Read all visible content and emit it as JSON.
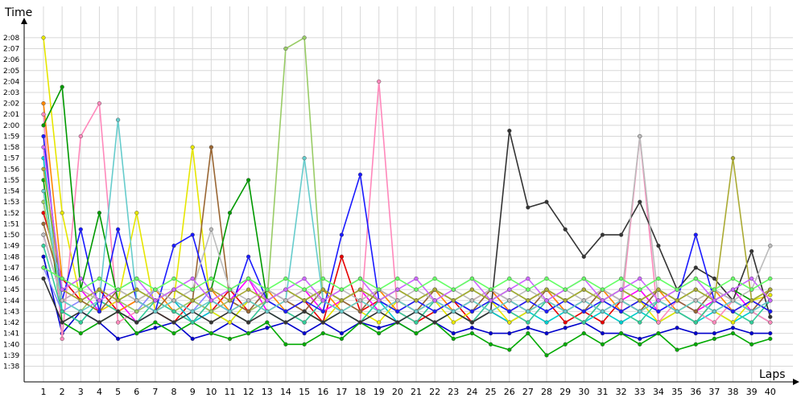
{
  "chart_data": {
    "type": "line",
    "ylabel": "Time",
    "xlabel": "Laps",
    "grid": true,
    "legend": "none",
    "x": [
      1,
      2,
      3,
      4,
      5,
      6,
      7,
      8,
      9,
      10,
      11,
      12,
      13,
      14,
      15,
      16,
      17,
      18,
      19,
      20,
      21,
      22,
      23,
      24,
      25,
      26,
      27,
      28,
      29,
      30,
      31,
      32,
      33,
      34,
      35,
      36,
      37,
      38,
      39,
      40
    ],
    "xticks": [
      "1",
      "2",
      "3",
      "4",
      "5",
      "6",
      "7",
      "8",
      "9",
      "10",
      "11",
      "12",
      "13",
      "14",
      "15",
      "16",
      "17",
      "18",
      "19",
      "20",
      "21",
      "22",
      "23",
      "24",
      "25",
      "26",
      "27",
      "28",
      "29",
      "30",
      "31",
      "32",
      "33",
      "34",
      "35",
      "36",
      "37",
      "38",
      "39",
      "40"
    ],
    "yticks": [
      "1:38",
      "1:39",
      "1:40",
      "1:41",
      "1:42",
      "1:43",
      "1:44",
      "1:45",
      "1:46",
      "1:47",
      "1:48",
      "1:49",
      "1:50",
      "1:51",
      "1:52",
      "1:53",
      "1:54",
      "1:55",
      "1:56",
      "1:57",
      "1:58",
      "1:59",
      "2:00",
      "2:01",
      "2:02",
      "2:03",
      "2:04",
      "2:05",
      "2:06",
      "2:07",
      "2:08"
    ],
    "ylim_seconds": [
      97,
      129.5
    ],
    "series": [
      {
        "color": "#0000cc",
        "values": [
          108,
          101,
          103,
          102,
          100.5,
          101,
          101.5,
          102,
          100.5,
          101,
          102,
          101,
          101.5,
          102,
          101,
          102,
          101,
          102,
          101.5,
          102,
          101,
          102,
          101,
          101.5,
          101,
          101,
          101.5,
          101,
          101.5,
          102,
          101,
          101,
          100.5,
          101,
          101.5,
          101,
          101,
          101.5,
          101,
          101
        ]
      },
      {
        "color": "#e60000",
        "values": [
          112,
          106,
          104,
          105,
          103,
          104,
          103,
          102,
          104,
          103,
          105,
          103,
          104,
          103,
          104,
          102,
          108,
          103,
          104,
          103,
          102,
          103,
          104,
          102,
          103,
          102,
          103,
          104,
          102,
          103,
          102,
          104,
          103,
          104,
          103,
          102,
          104,
          103,
          104,
          103
        ]
      },
      {
        "color": "#00aa00",
        "values": [
          115,
          102,
          101,
          102,
          103,
          101,
          102,
          101,
          102,
          101,
          100.5,
          101,
          102,
          100,
          100,
          101,
          100.5,
          102,
          101,
          102,
          101,
          102,
          100.5,
          101,
          100,
          99.5,
          101,
          99,
          100,
          101,
          100,
          101,
          100,
          101,
          99.5,
          100,
          100.5,
          101,
          100,
          100.5
        ]
      },
      {
        "color": "#ff00ff",
        "values": [
          110,
          104,
          105,
          103,
          104,
          102,
          103,
          104,
          102,
          103,
          104,
          106,
          103,
          104,
          105,
          103,
          104,
          105,
          103,
          104,
          103,
          104,
          103,
          104,
          105,
          103,
          104,
          105,
          103,
          104,
          103,
          104,
          105,
          103,
          104,
          103,
          104,
          105,
          103,
          104
        ]
      },
      {
        "color": "#00cccc",
        "values": [
          117,
          103,
          102,
          104,
          103,
          102,
          103,
          104,
          102,
          103,
          102,
          104,
          103,
          102,
          103,
          102,
          103,
          102,
          104,
          102,
          103,
          102,
          103,
          102,
          103,
          102,
          103,
          102,
          103,
          102,
          103,
          102,
          103,
          102,
          103,
          102,
          103,
          102,
          103,
          102
        ]
      },
      {
        "color": "#e6e600",
        "values": [
          128,
          112,
          104,
          103,
          104,
          112,
          103,
          104,
          118,
          103,
          102,
          104,
          103,
          104,
          103,
          102,
          104,
          103,
          102,
          104,
          103,
          104,
          102,
          103,
          104,
          102,
          103,
          104,
          103,
          102,
          104,
          103,
          104,
          102,
          103,
          104,
          103,
          102,
          104,
          104.5
        ]
      },
      {
        "color": "#ff8800",
        "values": [
          122,
          106,
          105,
          104,
          103,
          104,
          105,
          103,
          104,
          105,
          103,
          104,
          105,
          103,
          104,
          105,
          103,
          104,
          105,
          103,
          104,
          105,
          103,
          104,
          105,
          103,
          104,
          105,
          103,
          104,
          105,
          103,
          104,
          105,
          103,
          104,
          105,
          103,
          104,
          103
        ]
      },
      {
        "color": "#ff88bb",
        "values": [
          121,
          100.5,
          119,
          122,
          102,
          103,
          104,
          103,
          102,
          104,
          103,
          102,
          104,
          103,
          102,
          104,
          103,
          102,
          124,
          103,
          102,
          104,
          103,
          102,
          104,
          103,
          102,
          104,
          103,
          102,
          104,
          103,
          119,
          102,
          104,
          103,
          102,
          104,
          103,
          102
        ]
      },
      {
        "color": "#8888ff",
        "values": [
          107,
          103,
          104,
          105,
          104,
          103,
          105,
          104,
          103,
          105,
          104,
          103,
          105,
          104,
          103,
          105,
          104,
          103,
          105,
          104,
          103,
          105,
          104,
          103,
          105,
          104,
          103,
          105,
          104,
          103,
          105,
          104,
          103,
          105,
          104,
          103,
          105,
          104,
          103,
          105
        ]
      },
      {
        "color": "#99cc66",
        "values": [
          113,
          104,
          103,
          105,
          104,
          103,
          104,
          103,
          104,
          103,
          104,
          103,
          104,
          127,
          128,
          104,
          103,
          104,
          103,
          104,
          103,
          104,
          103,
          104,
          103,
          104,
          103,
          104,
          103,
          104,
          103,
          104,
          103,
          104,
          103,
          104,
          103,
          104,
          103,
          104
        ]
      },
      {
        "color": "#33cc99",
        "values": [
          109,
          103,
          102,
          104,
          103,
          102,
          104,
          103,
          102,
          104,
          103,
          102,
          104,
          103,
          102,
          104,
          103,
          102,
          104,
          103,
          102,
          104,
          103,
          102,
          104,
          103,
          102,
          104,
          103,
          102,
          104,
          103,
          102,
          104,
          103,
          102,
          104,
          103,
          102,
          104
        ]
      },
      {
        "color": "#996633",
        "values": [
          111,
          105,
          104,
          103,
          105,
          104,
          103,
          105,
          104,
          118,
          104,
          103,
          105,
          104,
          103,
          105,
          104,
          103,
          105,
          104,
          103,
          105,
          104,
          103,
          105,
          104,
          103,
          105,
          104,
          103,
          105,
          104,
          103,
          105,
          104,
          103,
          105,
          104,
          103,
          105
        ]
      },
      {
        "color": "#333333",
        "values": [
          106,
          102,
          103,
          102,
          103,
          102,
          103,
          102,
          103,
          102,
          103,
          102,
          103,
          102,
          103,
          102,
          103,
          102,
          103,
          102,
          103,
          102,
          103,
          102,
          103,
          119.5,
          112.5,
          113,
          110.5,
          108,
          110,
          110,
          113,
          109,
          105,
          107,
          106,
          104,
          108.5,
          102.5
        ]
      },
      {
        "color": "#1a1aff",
        "values": [
          119,
          104,
          110.5,
          103,
          110.5,
          104,
          103,
          109,
          110,
          104,
          103,
          108,
          104,
          103,
          104,
          103,
          110,
          115.5,
          104,
          103,
          104,
          103,
          104,
          103,
          104,
          103,
          104,
          103,
          104,
          103,
          104,
          103,
          104,
          103,
          104,
          110,
          104,
          103,
          104,
          103
        ]
      },
      {
        "color": "#009900",
        "values": [
          120,
          123.5,
          105,
          112,
          104,
          105,
          104,
          105,
          104,
          105,
          112,
          115,
          104,
          105,
          104,
          105,
          104,
          105,
          104,
          105,
          104,
          105,
          104,
          105,
          104,
          105,
          104,
          105,
          104,
          105,
          104,
          105,
          104,
          105,
          104,
          105,
          104,
          105,
          104,
          105
        ]
      },
      {
        "color": "#66cccc",
        "values": [
          114,
          104,
          103,
          104,
          120.5,
          104,
          103,
          104,
          103,
          104,
          103,
          104,
          103,
          104,
          117,
          104,
          103,
          104,
          103,
          104,
          103,
          104,
          103,
          104,
          103,
          104,
          103,
          104,
          103,
          104,
          103,
          104,
          103,
          104,
          103,
          104,
          103,
          104,
          103,
          104
        ]
      },
      {
        "color": "#bbbbbb",
        "values": [
          110,
          104,
          105,
          104,
          105,
          104,
          105,
          104,
          105,
          110.5,
          105,
          104,
          105,
          104,
          105,
          104,
          105,
          104,
          105,
          104,
          105,
          104,
          105,
          104,
          105,
          104,
          105,
          104,
          105,
          104,
          105,
          104,
          119,
          104,
          105,
          104,
          105,
          104,
          105,
          109
        ]
      },
      {
        "color": "#aaaa33",
        "values": [
          116,
          105,
          104,
          105,
          104,
          105,
          104,
          105,
          104,
          105,
          104,
          105,
          104,
          105,
          104,
          105,
          104,
          105,
          104,
          105,
          104,
          105,
          104,
          105,
          104,
          105,
          104,
          105,
          104,
          105,
          104,
          105,
          104,
          105,
          104,
          105,
          104,
          117,
          104,
          105
        ]
      },
      {
        "color": "#cc66ff",
        "values": [
          118,
          105,
          106,
          104,
          105,
          106,
          104,
          105,
          106,
          104,
          105,
          106,
          104,
          105,
          106,
          104,
          105,
          106,
          104,
          105,
          106,
          104,
          105,
          106,
          104,
          105,
          106,
          104,
          105,
          106,
          104,
          105,
          106,
          104,
          105,
          106,
          104,
          105,
          106,
          104
        ]
      },
      {
        "color": "#66ff66",
        "values": [
          107,
          106,
          105,
          106,
          105,
          106,
          105,
          106,
          105,
          106,
          105,
          106,
          105,
          106,
          105,
          106,
          105,
          106,
          105,
          106,
          105,
          106,
          105,
          106,
          105,
          106,
          105,
          106,
          105,
          106,
          105,
          106,
          105,
          106,
          105,
          106,
          105,
          106,
          105,
          106
        ]
      }
    ]
  }
}
